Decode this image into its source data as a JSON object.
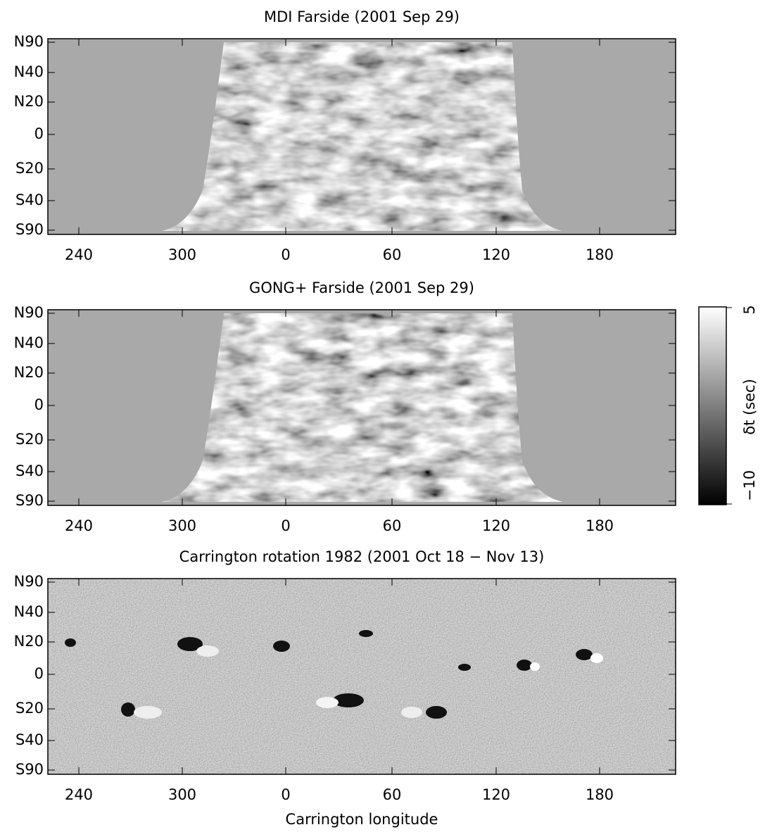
{
  "panels": [
    {
      "title": "MDI Farside (2001 Sep 29)",
      "y_ticks": [
        "N90",
        "N40",
        "N20",
        "0",
        "S20",
        "S40",
        "S90"
      ],
      "x_ticks": [
        "240",
        "300",
        "0",
        "60",
        "120",
        "180"
      ]
    },
    {
      "title": "GONG+ Farside (2001 Sep 29)",
      "y_ticks": [
        "N90",
        "N40",
        "N20",
        "0",
        "S20",
        "S40",
        "S90"
      ],
      "x_ticks": [
        "240",
        "300",
        "0",
        "60",
        "120",
        "180"
      ]
    },
    {
      "title": "Carrington rotation 1982 (2001 Oct 18 − Nov 13)",
      "y_ticks": [
        "N90",
        "N40",
        "N20",
        "0",
        "S20",
        "S40",
        "S90"
      ],
      "x_ticks": [
        "240",
        "300",
        "0",
        "60",
        "120",
        "180"
      ]
    }
  ],
  "x_label": "Carrington longitude",
  "colorbar": {
    "top": "5",
    "bottom": "−10",
    "label": "δt (sec)"
  }
}
